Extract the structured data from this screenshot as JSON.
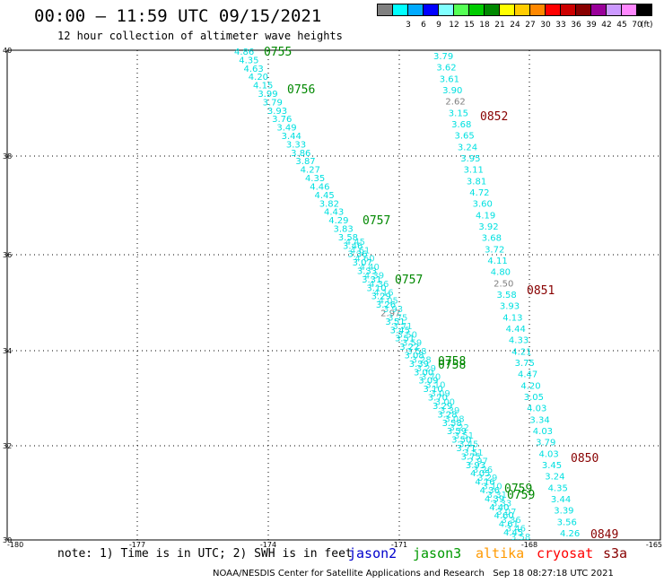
{
  "header": {
    "title": "00:00 – 11:59 UTC 09/15/2021",
    "subtitle": "12 hour collection of altimeter wave heights"
  },
  "legend": {
    "unit": "(ft)",
    "bins": [
      {
        "color": "#808080",
        "label": ""
      },
      {
        "color": "#00ffff",
        "label": "3"
      },
      {
        "color": "#00aaff",
        "label": "6"
      },
      {
        "color": "#0000ff",
        "label": "9"
      },
      {
        "color": "#80ffff",
        "label": "12"
      },
      {
        "color": "#55ff55",
        "label": "15"
      },
      {
        "color": "#00cc00",
        "label": "18"
      },
      {
        "color": "#008800",
        "label": "21"
      },
      {
        "color": "#ffff00",
        "label": "24"
      },
      {
        "color": "#ffcc00",
        "label": "27"
      },
      {
        "color": "#ff8800",
        "label": "30"
      },
      {
        "color": "#ff0000",
        "label": "33"
      },
      {
        "color": "#cc0000",
        "label": "36"
      },
      {
        "color": "#880000",
        "label": "39"
      },
      {
        "color": "#990099",
        "label": "42"
      },
      {
        "color": "#cc99ff",
        "label": "45"
      },
      {
        "color": "#ff88ff",
        "label": "70"
      },
      {
        "color": "#000000",
        "label": ""
      }
    ]
  },
  "axes": {
    "x_ticks": [
      "-180",
      "-177",
      "-174",
      "-171",
      "-168",
      "-165"
    ],
    "y_ticks": [
      "30",
      "32",
      "34",
      "36",
      "38",
      "40"
    ]
  },
  "tracks": {
    "left_values": [
      "4.86",
      "4.35",
      "4.63",
      "4.20",
      "4.15",
      "3.99",
      "3.79",
      "3.93",
      "3.76",
      "3.49",
      "3.44",
      "3.33",
      "3.86",
      "3.87",
      "4.27",
      "4.35",
      "4.46",
      "4.45",
      "3.82",
      "4.43",
      "4.29",
      "3.83",
      "3.58",
      "3.46",
      "3.36",
      "3.07",
      "3.33",
      "3.31",
      "3.10",
      "3.29",
      "3.26",
      "2.97",
      "3.51",
      "3.45",
      "3.51",
      "3.22",
      "3.08",
      "3.39",
      "3.00",
      "3.09",
      "3.10",
      "3.70",
      "3.29",
      "3.28",
      "3.58",
      "3.59",
      "3.50",
      "3.71",
      "3.75",
      "3.93",
      "4.05",
      "4.16",
      "4.36",
      "4.39",
      "4.40",
      "4.60",
      "4.61",
      "4.45"
    ],
    "right_values": [
      "3.79",
      "3.62",
      "3.61",
      "3.90",
      "2.62",
      "3.15",
      "3.68",
      "3.65",
      "3.24",
      "3.95",
      "3.11",
      "3.81",
      "4.72",
      "3.60",
      "4.19",
      "3.92",
      "3.68",
      "3.72",
      "4.11",
      "4.80",
      "2.50",
      "3.58",
      "3.93",
      "4.13",
      "4.44",
      "4.33",
      "4.21",
      "3.75",
      "4.47",
      "4.20",
      "3.05",
      "4.03",
      "3.34",
      "4.03",
      "3.79",
      "4.03",
      "3.45",
      "3.24",
      "4.35",
      "3.44",
      "3.39",
      "3.56",
      "4.26"
    ],
    "gray_values": [
      "2.62",
      "2.50",
      "2.97"
    ],
    "time_labels": [
      {
        "text": "0755",
        "sat": "jason3"
      },
      {
        "text": "0756",
        "sat": "jason3"
      },
      {
        "text": "0757",
        "sat": "jason3"
      },
      {
        "text": "0757",
        "sat": "jason3"
      },
      {
        "text": "0758",
        "sat": "jason3"
      },
      {
        "text": "0758",
        "sat": "jason3"
      },
      {
        "text": "0759",
        "sat": "jason3"
      },
      {
        "text": "0759",
        "sat": "jason3"
      },
      {
        "text": "0852",
        "sat": "cryosat"
      },
      {
        "text": "0851",
        "sat": "cryosat"
      },
      {
        "text": "0850",
        "sat": "cryosat"
      },
      {
        "text": "0849",
        "sat": "cryosat"
      }
    ]
  },
  "colors": {
    "value_text": "#00e0e0",
    "value_gray": "#808080",
    "jason3": "#008800",
    "cryosat": "#880000",
    "grid": "#000000"
  },
  "note": "note: 1) Time is in UTC; 2) SWH is in feet",
  "satellites": [
    {
      "name": "jason2",
      "color": "#0000cc"
    },
    {
      "name": "jason3",
      "color": "#009900"
    },
    {
      "name": "altika",
      "color": "#ff9900"
    },
    {
      "name": "cryosat",
      "color": "#ff0000"
    },
    {
      "name": "s3a",
      "color": "#880000"
    }
  ],
  "footer": "NOAA/NESDIS Center for Satellite Applications and Research   Sep 18 08:27:18 UTC 2021"
}
